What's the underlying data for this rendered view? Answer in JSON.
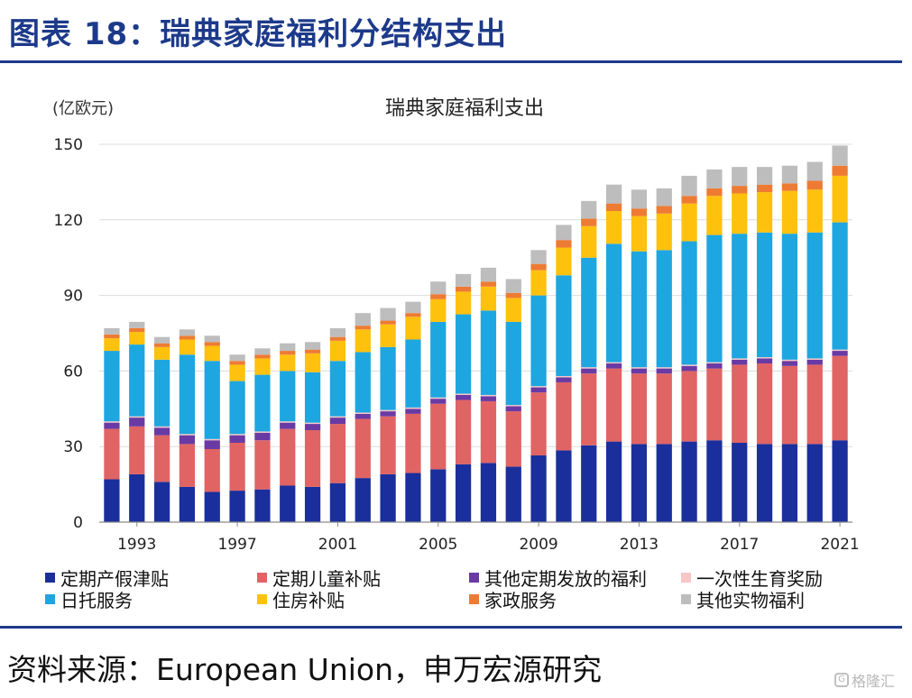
{
  "header": {
    "title": "图表 18：瑞典家庭福利分结构支出"
  },
  "footer": {
    "source": "资料来源：European Union，申万宏源研究",
    "watermark": "格隆汇",
    "watermark_icon": "G"
  },
  "colors": {
    "定期产假津贴": "#1a2f9c",
    "定期儿童补贴": "#e06464",
    "其他定期发放的福利": "#6a3aa4",
    "一次性生育奖励": "#f7c6c6",
    "日托服务": "#1ea6e0",
    "住房补贴": "#fec10e",
    "家政服务": "#ee7b33",
    "其他实物福利": "#bdbdbd"
  },
  "chart_data": {
    "type": "bar",
    "stacked": true,
    "title": "瑞典家庭福利支出",
    "ylabel": "(亿欧元)",
    "xlabel": "",
    "ylim": [
      0,
      150
    ],
    "yticks": [
      0,
      30,
      60,
      90,
      120,
      150
    ],
    "xtick_labels": [
      "1993",
      "1997",
      "2001",
      "2005",
      "2009",
      "2013",
      "2017",
      "2021"
    ],
    "categories": [
      "1992",
      "1993",
      "1994",
      "1995",
      "1996",
      "1997",
      "1998",
      "1999",
      "2000",
      "2001",
      "2002",
      "2003",
      "2004",
      "2005",
      "2006",
      "2007",
      "2008",
      "2009",
      "2010",
      "2011",
      "2012",
      "2013",
      "2014",
      "2015",
      "2016",
      "2017",
      "2018",
      "2019",
      "2020",
      "2021"
    ],
    "series": [
      {
        "name": "定期产假津贴",
        "values": [
          17,
          19,
          16,
          14,
          12,
          12.5,
          13,
          14.5,
          14,
          15.5,
          17.5,
          19,
          19.5,
          21,
          23,
          23.5,
          22,
          26.5,
          28.5,
          30.5,
          32,
          31,
          31,
          32,
          32.5,
          31.5,
          31,
          31,
          31,
          32.5
        ]
      },
      {
        "name": "定期儿童补贴",
        "values": [
          20,
          19,
          18.5,
          17,
          17,
          19,
          19.5,
          22.5,
          22.5,
          23.5,
          23.5,
          23,
          23.5,
          26,
          25.5,
          24.5,
          22,
          25,
          27,
          28.5,
          29,
          28,
          28,
          28,
          28.5,
          31,
          32,
          31,
          31.5,
          33.5
        ]
      },
      {
        "name": "其他定期发放的福利",
        "values": [
          2.5,
          3.5,
          3,
          3.5,
          3.5,
          3,
          3,
          2.5,
          2.5,
          2.5,
          2,
          2,
          2,
          2,
          2,
          2,
          2,
          2,
          2,
          2,
          2,
          2,
          2,
          2,
          2,
          2,
          2,
          2,
          2,
          2
        ]
      },
      {
        "name": "一次性生育奖励",
        "values": [
          0.5,
          0.5,
          0.5,
          0.5,
          0.5,
          0.5,
          0.5,
          0.5,
          0.5,
          0.5,
          0.5,
          0.5,
          0.5,
          0.5,
          0.5,
          0.5,
          0.5,
          0.5,
          0.5,
          0.5,
          0.5,
          0.5,
          0.5,
          0.5,
          0.5,
          0.5,
          0.5,
          0.5,
          0.5,
          0.5
        ]
      },
      {
        "name": "日托服务",
        "values": [
          28,
          28.5,
          26.5,
          31.5,
          31,
          21,
          22.5,
          20,
          20,
          22,
          24,
          25,
          27,
          30,
          31.5,
          33.5,
          33,
          36,
          40,
          43.5,
          47,
          46,
          46.5,
          49,
          50.5,
          49.5,
          49.5,
          50,
          50,
          50.5
        ]
      },
      {
        "name": "住房补贴",
        "values": [
          5,
          5,
          5,
          6,
          6,
          6.5,
          6.5,
          6.5,
          7.5,
          8,
          9,
          9,
          9,
          9,
          9,
          9.5,
          9.5,
          10,
          11,
          12.5,
          13,
          14,
          14.5,
          15,
          15.5,
          16,
          16,
          17,
          17,
          18.5
        ]
      },
      {
        "name": "家政服务",
        "values": [
          1.5,
          1.5,
          1.5,
          1.5,
          1.5,
          1.5,
          1.5,
          1.5,
          1.5,
          1.5,
          1.5,
          1.5,
          1.5,
          2,
          2,
          2,
          2,
          2.5,
          3,
          3,
          3,
          3,
          3,
          3,
          3,
          3,
          3,
          3,
          3.5,
          4
        ]
      },
      {
        "name": "其他实物福利",
        "values": [
          2.5,
          2.5,
          2.5,
          2.5,
          2.5,
          2.5,
          2.5,
          3,
          3,
          3.5,
          5,
          5,
          4.5,
          5,
          5,
          5.5,
          5.5,
          5.5,
          6,
          7,
          7.5,
          7.5,
          7,
          8,
          7.5,
          7.5,
          7,
          7,
          7.5,
          8
        ]
      }
    ],
    "legend_position": "bottom"
  }
}
